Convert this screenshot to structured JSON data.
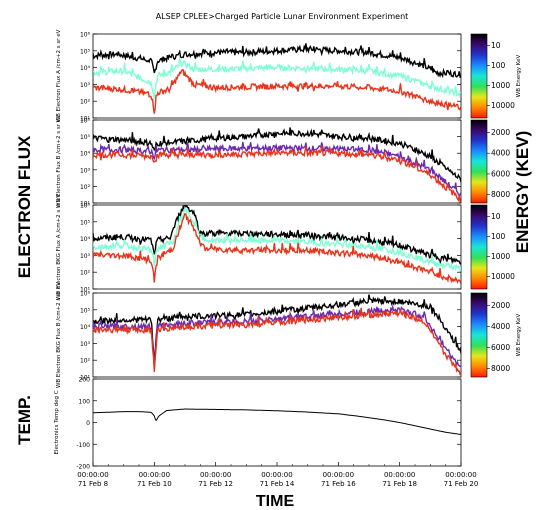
{
  "chart_data": {
    "type": "line",
    "title": "ALSEP  CPLEE>Charged Particle Lunar Environment Experiment",
    "xlabel": "TIME",
    "x_ticks": [
      {
        "time": "00:00:00",
        "date": "71 Feb  8"
      },
      {
        "time": "00:00:00",
        "date": "71 Feb 10"
      },
      {
        "time": "00:00:00",
        "date": "71 Feb 12"
      },
      {
        "time": "00:00:00",
        "date": "71 Feb 14"
      },
      {
        "time": "00:00:00",
        "date": "71 Feb 16"
      },
      {
        "time": "00:00:00",
        "date": "71 Feb 18"
      },
      {
        "time": "00:00:00",
        "date": "71 Feb 20"
      }
    ],
    "xlim": [
      "1971-02-08",
      "1971-02-20"
    ],
    "group_labels": [
      "ELECTRON FLUX",
      "TEMP."
    ],
    "colorbar_group_label": "ENERGY (KEV)",
    "panels": [
      {
        "ylabel": "WB Electron Flux A /cm+2 s sr eV",
        "yscale": "log",
        "ytick_labels": [
          "10¹",
          "10²",
          "10³",
          "10⁴",
          "10⁵",
          "10⁶"
        ],
        "ytick_exponents": [
          1,
          2,
          3,
          4,
          5,
          6
        ],
        "ylim_exp": [
          1,
          6
        ],
        "colorbar": {
          "label": "WB Energy KeV",
          "ticks": [
            "10",
            "100",
            "1000",
            "10000"
          ],
          "scale": "log"
        },
        "series": [
          {
            "color": "#000000",
            "exp": [
              [
                0,
                4.7
              ],
              [
                0.8,
                4.8
              ],
              [
                1.9,
                4.4
              ],
              [
                2.0,
                3.6
              ],
              [
                2.1,
                4.4
              ],
              [
                2.5,
                4.6
              ],
              [
                3.0,
                4.8
              ],
              [
                4.0,
                4.9
              ],
              [
                5.0,
                4.9
              ],
              [
                6.0,
                5.0
              ],
              [
                7.0,
                5.1
              ],
              [
                8.0,
                5.0
              ],
              [
                9.0,
                4.9
              ],
              [
                10.0,
                4.6
              ],
              [
                10.8,
                4.1
              ],
              [
                11.2,
                3.7
              ],
              [
                12.0,
                3.6
              ]
            ]
          },
          {
            "color": "#7fffd4",
            "exp": [
              [
                0,
                3.7
              ],
              [
                1.0,
                3.8
              ],
              [
                1.9,
                3.1
              ],
              [
                2.0,
                2.3
              ],
              [
                2.1,
                3.5
              ],
              [
                2.3,
                3.6
              ],
              [
                2.6,
                3.8
              ],
              [
                2.9,
                4.3
              ],
              [
                3.3,
                3.9
              ],
              [
                4.0,
                3.9
              ],
              [
                6.0,
                4.0
              ],
              [
                8.0,
                3.9
              ],
              [
                9.0,
                3.8
              ],
              [
                10.0,
                3.5
              ],
              [
                11.0,
                2.9
              ],
              [
                12.0,
                2.4
              ]
            ]
          },
          {
            "color": "#e8331a",
            "exp": [
              [
                0,
                2.8
              ],
              [
                1.0,
                2.7
              ],
              [
                1.9,
                2.4
              ],
              [
                2.0,
                1.4
              ],
              [
                2.1,
                2.5
              ],
              [
                2.5,
                2.7
              ],
              [
                2.9,
                3.8
              ],
              [
                3.3,
                3.0
              ],
              [
                4.0,
                2.8
              ],
              [
                6.0,
                2.9
              ],
              [
                8.0,
                2.9
              ],
              [
                9.0,
                2.8
              ],
              [
                10.0,
                2.6
              ],
              [
                11.0,
                2.0
              ],
              [
                12.0,
                1.6
              ]
            ]
          }
        ]
      },
      {
        "ylabel": "WB Electron Flux B /cm+2 s sr eV",
        "yscale": "log",
        "ytick_labels": [
          "10¹",
          "10²",
          "10³",
          "10⁴",
          "10⁵",
          "10⁶"
        ],
        "ytick_exponents": [
          1,
          2,
          3,
          4,
          5,
          6
        ],
        "ylim_exp": [
          1,
          6
        ],
        "colorbar": {
          "label": "",
          "ticks": [
            "2000",
            "4000",
            "6000",
            "8000"
          ],
          "scale": "linear"
        },
        "series": [
          {
            "color": "#000000",
            "exp": [
              [
                0,
                4.9
              ],
              [
                1.0,
                4.8
              ],
              [
                1.9,
                4.6
              ],
              [
                2.0,
                4.1
              ],
              [
                2.1,
                4.6
              ],
              [
                3.0,
                4.7
              ],
              [
                4.0,
                4.9
              ],
              [
                5.0,
                5.0
              ],
              [
                6.0,
                5.2
              ],
              [
                7.0,
                5.2
              ],
              [
                8.0,
                5.0
              ],
              [
                9.0,
                4.9
              ],
              [
                10.0,
                4.6
              ],
              [
                11.0,
                3.8
              ],
              [
                12.0,
                2.4
              ]
            ]
          },
          {
            "color": "#6a2bb0",
            "exp": [
              [
                0,
                4.2
              ],
              [
                1.0,
                4.2
              ],
              [
                1.9,
                4.1
              ],
              [
                2.0,
                3.8
              ],
              [
                2.1,
                4.2
              ],
              [
                3.0,
                4.2
              ],
              [
                5.0,
                4.3
              ],
              [
                7.0,
                4.3
              ],
              [
                9.0,
                4.2
              ],
              [
                10.0,
                3.8
              ],
              [
                11.0,
                3.0
              ],
              [
                12.0,
                1.5
              ]
            ]
          },
          {
            "color": "#e8331a",
            "exp": [
              [
                0,
                3.9
              ],
              [
                1.0,
                3.9
              ],
              [
                1.9,
                3.8
              ],
              [
                2.0,
                3.6
              ],
              [
                2.1,
                3.9
              ],
              [
                4.0,
                3.9
              ],
              [
                6.0,
                4.0
              ],
              [
                8.0,
                4.0
              ],
              [
                9.0,
                3.9
              ],
              [
                10.0,
                3.6
              ],
              [
                11.0,
                2.7
              ],
              [
                12.0,
                1.2
              ]
            ]
          }
        ]
      },
      {
        "ylabel": "WB Electron BKG Flux A /cm+2 s sr eV",
        "yscale": "log",
        "ytick_labels": [
          "10¹",
          "10²",
          "10³",
          "10⁴",
          "10⁵",
          "10⁶"
        ],
        "ytick_exponents": [
          1,
          2,
          3,
          4,
          5,
          6
        ],
        "ylim_exp": [
          1,
          6
        ],
        "colorbar": {
          "label": "",
          "ticks": [
            "10",
            "100",
            "1000",
            "10000"
          ],
          "scale": "log"
        },
        "series": [
          {
            "color": "#000000",
            "exp": [
              [
                0,
                4.0
              ],
              [
                1.0,
                4.1
              ],
              [
                1.9,
                3.9
              ],
              [
                2.0,
                3.0
              ],
              [
                2.1,
                3.9
              ],
              [
                2.5,
                4.0
              ],
              [
                2.8,
                5.4
              ],
              [
                3.0,
                6.0
              ],
              [
                3.3,
                5.5
              ],
              [
                3.5,
                4.3
              ],
              [
                5.0,
                4.3
              ],
              [
                7.0,
                4.2
              ],
              [
                9.0,
                3.9
              ],
              [
                10.0,
                3.6
              ],
              [
                11.0,
                3.0
              ],
              [
                12.0,
                2.6
              ]
            ]
          },
          {
            "color": "#7fffd4",
            "exp": [
              [
                0,
                3.5
              ],
              [
                1.0,
                3.6
              ],
              [
                1.9,
                3.3
              ],
              [
                2.0,
                2.5
              ],
              [
                2.1,
                3.4
              ],
              [
                2.6,
                3.8
              ],
              [
                3.0,
                5.7
              ],
              [
                3.3,
                5.0
              ],
              [
                3.6,
                3.9
              ],
              [
                5.0,
                3.9
              ],
              [
                7.0,
                3.8
              ],
              [
                9.0,
                3.5
              ],
              [
                10.0,
                3.2
              ],
              [
                11.0,
                2.6
              ],
              [
                12.0,
                2.2
              ]
            ]
          },
          {
            "color": "#e8331a",
            "exp": [
              [
                0,
                3.0
              ],
              [
                1.0,
                3.0
              ],
              [
                1.9,
                2.7
              ],
              [
                2.0,
                1.5
              ],
              [
                2.1,
                2.8
              ],
              [
                2.6,
                3.4
              ],
              [
                3.0,
                5.4
              ],
              [
                3.3,
                4.6
              ],
              [
                3.6,
                3.4
              ],
              [
                5.0,
                3.3
              ],
              [
                7.0,
                3.3
              ],
              [
                9.0,
                3.0
              ],
              [
                10.0,
                2.6
              ],
              [
                11.0,
                2.0
              ],
              [
                12.0,
                1.4
              ]
            ]
          }
        ]
      },
      {
        "ylabel": "WB Electron BKG Flux B /cm+2 s sr eV",
        "yscale": "log",
        "ytick_labels": [
          "10¹",
          "10²",
          "10³",
          "10⁴",
          "10⁵",
          "10⁶"
        ],
        "ytick_exponents": [
          1,
          2,
          3,
          4,
          5,
          6
        ],
        "ylim_exp": [
          1,
          6
        ],
        "colorbar": {
          "label": "WB Energy KeV",
          "ticks": [
            "2000",
            "4000",
            "6000",
            "8000"
          ],
          "scale": "linear"
        },
        "series": [
          {
            "color": "#000000",
            "exp": [
              [
                0,
                4.3
              ],
              [
                1.0,
                4.4
              ],
              [
                1.9,
                4.4
              ],
              [
                2.0,
                1.8
              ],
              [
                2.1,
                4.4
              ],
              [
                3.0,
                4.6
              ],
              [
                5.0,
                4.7
              ],
              [
                6.0,
                4.9
              ],
              [
                7.0,
                5.1
              ],
              [
                8.0,
                5.3
              ],
              [
                9.0,
                5.5
              ],
              [
                10.0,
                5.5
              ],
              [
                11.0,
                5.2
              ],
              [
                11.4,
                4.2
              ],
              [
                12.0,
                2.5
              ]
            ]
          },
          {
            "color": "#6a2bb0",
            "exp": [
              [
                0,
                4.0
              ],
              [
                1.0,
                4.0
              ],
              [
                1.9,
                4.0
              ],
              [
                2.0,
                1.6
              ],
              [
                2.1,
                4.0
              ],
              [
                3.0,
                4.2
              ],
              [
                5.0,
                4.3
              ],
              [
                7.0,
                4.6
              ],
              [
                9.0,
                4.9
              ],
              [
                10.0,
                5.0
              ],
              [
                10.8,
                4.6
              ],
              [
                11.3,
                3.2
              ],
              [
                12.0,
                1.5
              ]
            ]
          },
          {
            "color": "#e8331a",
            "exp": [
              [
                0,
                3.8
              ],
              [
                1.0,
                3.8
              ],
              [
                1.9,
                3.8
              ],
              [
                2.0,
                1.4
              ],
              [
                2.1,
                3.8
              ],
              [
                3.0,
                4.0
              ],
              [
                5.0,
                4.1
              ],
              [
                7.0,
                4.4
              ],
              [
                9.0,
                4.7
              ],
              [
                10.0,
                4.8
              ],
              [
                10.8,
                4.3
              ],
              [
                11.3,
                2.8
              ],
              [
                12.0,
                1.2
              ]
            ]
          }
        ]
      },
      {
        "ylabel": "Electronics Temp deg C",
        "yscale": "linear",
        "ytick_labels": [
          "-200",
          "-100",
          "0",
          "100",
          "200"
        ],
        "yticks": [
          -200,
          -100,
          0,
          100,
          200
        ],
        "ylim": [
          -200,
          200
        ],
        "series": [
          {
            "color": "#000000",
            "points": [
              [
                0,
                45
              ],
              [
                0.5,
                47
              ],
              [
                1.0,
                50
              ],
              [
                1.5,
                50
              ],
              [
                1.9,
                47
              ],
              [
                2.0,
                30
              ],
              [
                2.05,
                8
              ],
              [
                2.15,
                30
              ],
              [
                2.4,
                55
              ],
              [
                3.0,
                62
              ],
              [
                4.0,
                60
              ],
              [
                5.0,
                58
              ],
              [
                6.0,
                54
              ],
              [
                7.0,
                48
              ],
              [
                8.0,
                40
              ],
              [
                8.7,
                28
              ],
              [
                9.0,
                22
              ],
              [
                9.5,
                12
              ],
              [
                10.0,
                0
              ],
              [
                10.5,
                -15
              ],
              [
                11.0,
                -30
              ],
              [
                11.5,
                -45
              ],
              [
                12.0,
                -55
              ]
            ]
          }
        ]
      }
    ]
  }
}
